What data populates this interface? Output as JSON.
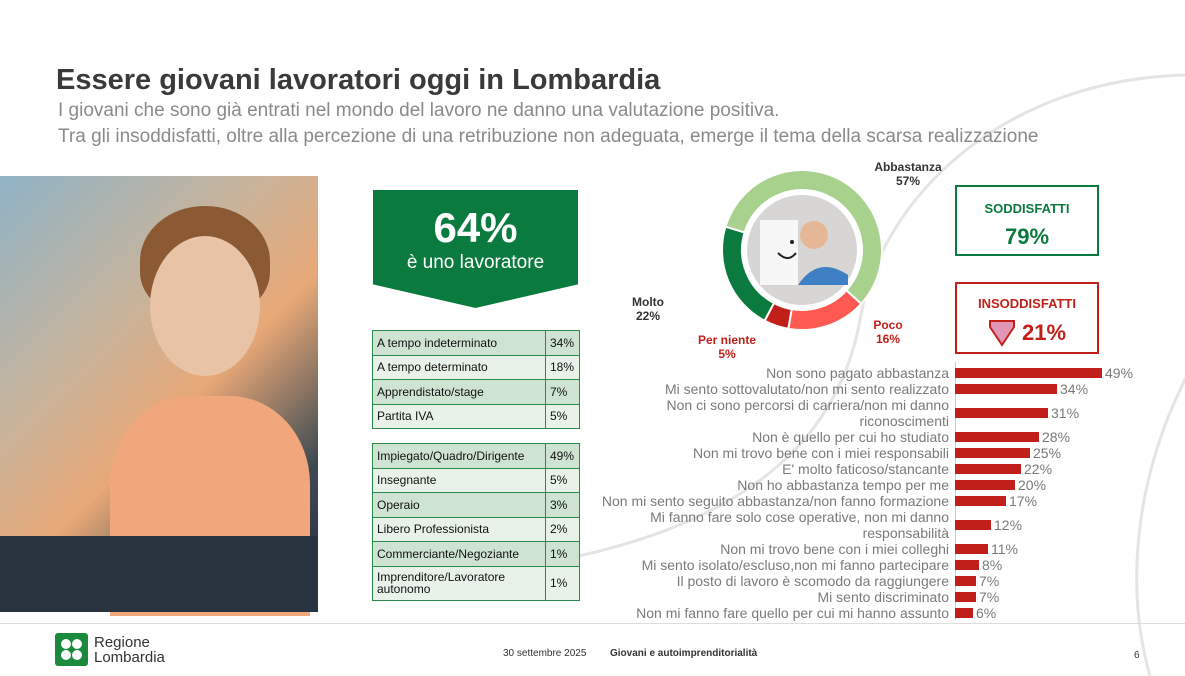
{
  "title": "Essere giovani lavoratori oggi in Lombardia",
  "subtitle_1": "I giovani che sono già entrati nel mondo del lavoro ne danno una valutazione positiva.",
  "subtitle_2": "Tra gli insoddisfatti, oltre alla percezione di una retribuzione non adeguata, emerge il tema della scarsa realizzazione",
  "banner": {
    "value": "64%",
    "label": "è uno lavoratore"
  },
  "contract_table": [
    [
      "A tempo indeterminato",
      "34%"
    ],
    [
      "A tempo determinato",
      "18%"
    ],
    [
      "Apprendistato/stage",
      "7%"
    ],
    [
      "Partita IVA",
      "5%"
    ]
  ],
  "role_table": [
    [
      "Impiegato/Quadro/Dirigente",
      "49%"
    ],
    [
      "Insegnante",
      "5%"
    ],
    [
      "Operaio",
      "3%"
    ],
    [
      "Libero Professionista",
      "2%"
    ],
    [
      "Commerciante/Negoziante",
      "1%"
    ],
    [
      "Imprenditore/Lavoratore autonomo",
      "1%"
    ]
  ],
  "donut": {
    "slices": [
      {
        "name": "Abbastanza",
        "label": "57%",
        "value": 57,
        "color": "#a9d18e"
      },
      {
        "name": "Poco",
        "label": "16%",
        "value": 16,
        "color": "#ff5a52"
      },
      {
        "name": "Per niente",
        "label": "5%",
        "value": 5,
        "color": "#c1201a"
      },
      {
        "name": "Molto",
        "label": "22%",
        "value": 22,
        "color": "#0b7a3e"
      }
    ]
  },
  "satisfied": {
    "label": "SODDISFATTI",
    "value": "79%",
    "color": "#0b7a3e"
  },
  "unsatisfied": {
    "label": "INSODDISFATTI",
    "value": "21%",
    "color": "#c1201a"
  },
  "chart_data": {
    "type": "bar",
    "orientation": "horizontal",
    "categories": [
      "Non sono pagato abbastanza",
      "Mi sento sottovalutato/non mi sento realizzato",
      "Non ci sono percorsi di carriera/non mi danno riconoscimenti",
      "Non è quello per cui ho studiato",
      "Non mi trovo bene con i miei responsabili",
      "E' molto faticoso/stancante",
      "Non ho abbastanza tempo per me",
      "Non mi sento seguito abbastanza/non fanno formazione",
      "Mi fanno fare solo cose operative, non mi danno responsabilità",
      "Non mi trovo bene con i miei colleghi",
      "Mi sento isolato/escluso,non mi fanno partecipare",
      "Il posto di lavoro è scomodo da raggiungere",
      "Mi sento discriminato",
      "Non mi fanno fare quello per cui mi hanno assunto"
    ],
    "values": [
      49,
      34,
      31,
      28,
      25,
      22,
      20,
      17,
      12,
      11,
      8,
      7,
      7,
      6
    ],
    "labels": [
      "49%",
      "34%",
      "31%",
      "28%",
      "25%",
      "22%",
      "20%",
      "17%",
      "12%",
      "11%",
      "8%",
      "7%",
      "7%",
      "6%"
    ],
    "color": "#c1201a"
  },
  "footer": {
    "org_line1": "Regione",
    "org_line2": "Lombardia",
    "date": "30 settembre 2025",
    "topic": "Giovani e autoimprenditorialità",
    "page": "6"
  }
}
